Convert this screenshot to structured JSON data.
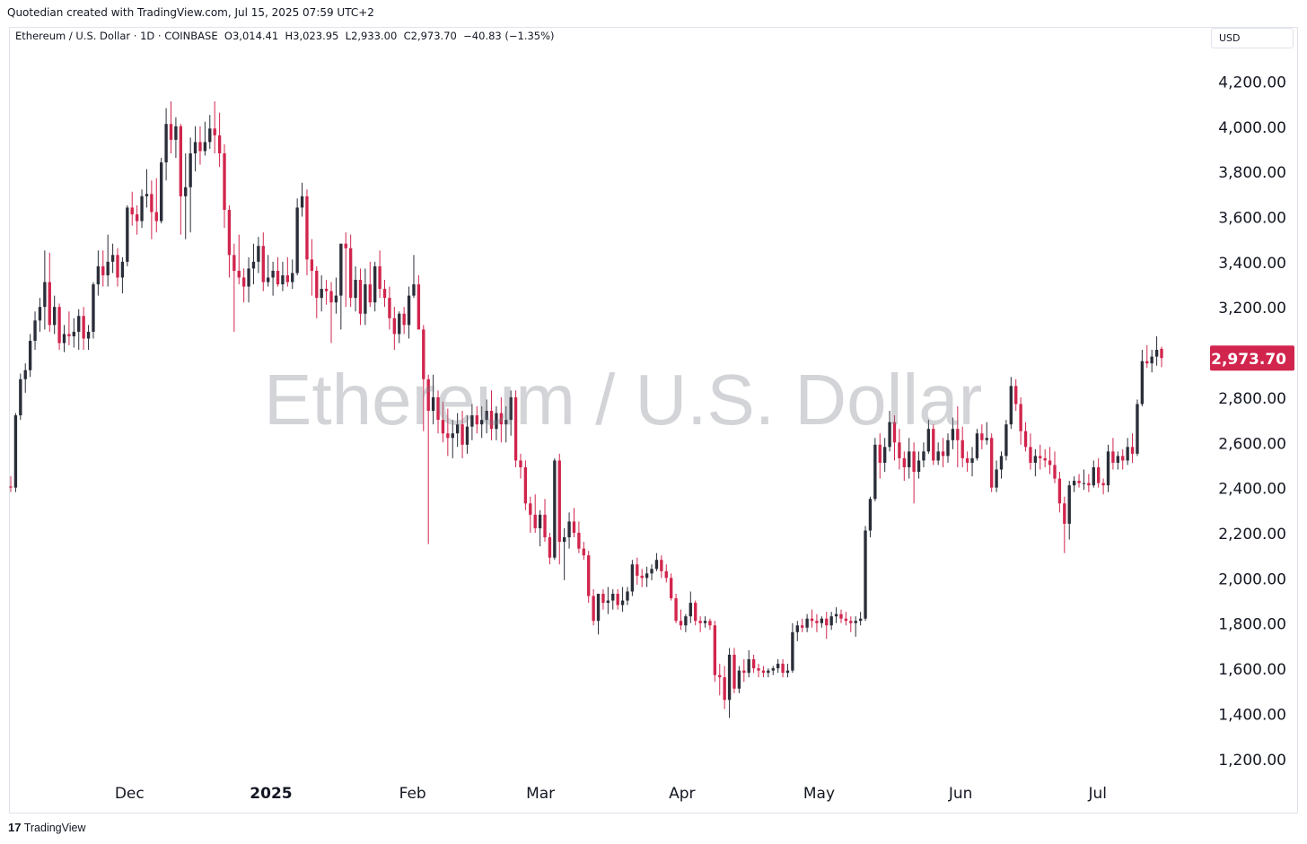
{
  "header": {
    "credit": "Quotedian created with TradingView.com, Jul 15, 2025 07:59 UTC+2"
  },
  "legend": {
    "symbol": "Ethereum / U.S. Dollar · 1D · COINBASE",
    "open": "O3,014.41",
    "high": "H3,023.95",
    "low": "L2,933.00",
    "close": "C2,973.70",
    "change": "−40.83 (−1.35%)"
  },
  "currency_label": "USD",
  "watermark": "Ethereum / U.S. Dollar",
  "footer": {
    "brand_logo": "17",
    "brand_name": "TradingView"
  },
  "colors": {
    "up": "#2a2e39",
    "down": "#d1254d",
    "price_tag": "#d1254d",
    "axis_text": "#131722"
  },
  "chart_data": {
    "type": "candlestick",
    "title": "Ethereum / U.S. Dollar",
    "interval": "1D",
    "exchange": "COINBASE",
    "ylim": [
      1100,
      4420
    ],
    "y_ticks": [
      4200,
      4000,
      3800,
      3600,
      3400,
      3200,
      3000,
      2800,
      2600,
      2400,
      2200,
      2000,
      1800,
      1600,
      1400,
      1200
    ],
    "y_tick_labels": [
      "4,200.00",
      "4,000.00",
      "3,800.00",
      "3,600.00",
      "3,400.00",
      "3,200.00",
      "3,000.00",
      "2,800.00",
      "2,600.00",
      "2,400.00",
      "2,200.00",
      "2,000.00",
      "1,800.00",
      "1,600.00",
      "1,400.00",
      "1,200.00"
    ],
    "x_labels": [
      {
        "label": "Dec",
        "date": "2024-12-01"
      },
      {
        "label": "2025",
        "date": "2025-01-01"
      },
      {
        "label": "Feb",
        "date": "2025-02-01"
      },
      {
        "label": "Mar",
        "date": "2025-03-01"
      },
      {
        "label": "Apr",
        "date": "2025-04-01"
      },
      {
        "label": "May",
        "date": "2025-05-01"
      },
      {
        "label": "Jun",
        "date": "2025-06-01"
      },
      {
        "label": "Jul",
        "date": "2025-07-01"
      }
    ],
    "first_date": "2024-11-05",
    "last_date": "2025-07-15",
    "last_price": 2973.7,
    "last_price_label": "2,973.70",
    "grid": false,
    "candles": [
      [
        2405,
        2450,
        2380,
        2400
      ],
      [
        2400,
        2730,
        2380,
        2720
      ],
      [
        2720,
        2905,
        2700,
        2880
      ],
      [
        2880,
        2950,
        2820,
        2920
      ],
      [
        2920,
        3080,
        2890,
        3050
      ],
      [
        3050,
        3180,
        3010,
        3140
      ],
      [
        3140,
        3240,
        3090,
        3200
      ],
      [
        3200,
        3450,
        3100,
        3310
      ],
      [
        3310,
        3440,
        3090,
        3120
      ],
      [
        3120,
        3250,
        3080,
        3200
      ],
      [
        3200,
        3215,
        3010,
        3040
      ],
      [
        3040,
        3120,
        3000,
        3080
      ],
      [
        3080,
        3180,
        3030,
        3070
      ],
      [
        3070,
        3150,
        3020,
        3090
      ],
      [
        3090,
        3190,
        3010,
        3160
      ],
      [
        3160,
        3200,
        3010,
        3060
      ],
      [
        3060,
        3120,
        3010,
        3090
      ],
      [
        3090,
        3310,
        3060,
        3300
      ],
      [
        3300,
        3450,
        3250,
        3380
      ],
      [
        3380,
        3450,
        3290,
        3340
      ],
      [
        3340,
        3520,
        3290,
        3400
      ],
      [
        3400,
        3480,
        3350,
        3430
      ],
      [
        3430,
        3460,
        3290,
        3330
      ],
      [
        3330,
        3420,
        3260,
        3400
      ],
      [
        3400,
        3650,
        3380,
        3640
      ],
      [
        3640,
        3710,
        3560,
        3610
      ],
      [
        3610,
        3650,
        3520,
        3580
      ],
      [
        3580,
        3720,
        3550,
        3690
      ],
      [
        3690,
        3810,
        3640,
        3700
      ],
      [
        3700,
        3760,
        3500,
        3620
      ],
      [
        3620,
        3770,
        3530,
        3580
      ],
      [
        3580,
        3860,
        3570,
        3840
      ],
      [
        3840,
        4080,
        3760,
        4010
      ],
      [
        4010,
        4110,
        3880,
        3940
      ],
      [
        3940,
        4040,
        3860,
        4000
      ],
      [
        4000,
        4010,
        3520,
        3690
      ],
      [
        3690,
        3880,
        3500,
        3730
      ],
      [
        3730,
        3950,
        3530,
        3880
      ],
      [
        3880,
        4000,
        3800,
        3930
      ],
      [
        3930,
        4000,
        3830,
        3890
      ],
      [
        3890,
        4020,
        3870,
        3930
      ],
      [
        3930,
        4050,
        3900,
        3990
      ],
      [
        3990,
        4110,
        3880,
        3960
      ],
      [
        3960,
        4060,
        3820,
        3880
      ],
      [
        3880,
        3920,
        3550,
        3630
      ],
      [
        3630,
        3650,
        3330,
        3430
      ],
      [
        3430,
        3480,
        3090,
        3360
      ],
      [
        3360,
        3520,
        3300,
        3330
      ],
      [
        3330,
        3370,
        3220,
        3290
      ],
      [
        3290,
        3420,
        3220,
        3370
      ],
      [
        3370,
        3480,
        3300,
        3400
      ],
      [
        3400,
        3510,
        3350,
        3470
      ],
      [
        3470,
        3530,
        3270,
        3310
      ],
      [
        3310,
        3430,
        3290,
        3330
      ],
      [
        3330,
        3400,
        3250,
        3360
      ],
      [
        3360,
        3420,
        3290,
        3300
      ],
      [
        3300,
        3400,
        3270,
        3340
      ],
      [
        3340,
        3420,
        3290,
        3310
      ],
      [
        3310,
        3410,
        3280,
        3350
      ],
      [
        3350,
        3680,
        3340,
        3640
      ],
      [
        3640,
        3750,
        3600,
        3690
      ],
      [
        3690,
        3720,
        3340,
        3410
      ],
      [
        3410,
        3500,
        3250,
        3360
      ],
      [
        3360,
        3380,
        3150,
        3240
      ],
      [
        3240,
        3340,
        3180,
        3280
      ],
      [
        3280,
        3320,
        3210,
        3270
      ],
      [
        3270,
        3310,
        3040,
        3220
      ],
      [
        3220,
        3330,
        3170,
        3250
      ],
      [
        3250,
        3480,
        3100,
        3480
      ],
      [
        3480,
        3530,
        3200,
        3460
      ],
      [
        3460,
        3520,
        3200,
        3240
      ],
      [
        3240,
        3380,
        3180,
        3320
      ],
      [
        3320,
        3370,
        3120,
        3170
      ],
      [
        3170,
        3370,
        3120,
        3300
      ],
      [
        3300,
        3400,
        3200,
        3220
      ],
      [
        3220,
        3400,
        3180,
        3380
      ],
      [
        3380,
        3450,
        3240,
        3280
      ],
      [
        3280,
        3320,
        3200,
        3240
      ],
      [
        3240,
        3290,
        3100,
        3150
      ],
      [
        3150,
        3200,
        3010,
        3080
      ],
      [
        3080,
        3180,
        3040,
        3170
      ],
      [
        3170,
        3200,
        3080,
        3120
      ],
      [
        3120,
        3290,
        3060,
        3250
      ],
      [
        3250,
        3430,
        3240,
        3300
      ],
      [
        3300,
        3340,
        3100,
        3100
      ],
      [
        3100,
        3120,
        2650,
        2880
      ],
      [
        2880,
        2900,
        2150,
        2740
      ],
      [
        2740,
        2900,
        2680,
        2800
      ],
      [
        2800,
        2830,
        2640,
        2700
      ],
      [
        2700,
        2780,
        2600,
        2640
      ],
      [
        2640,
        2750,
        2540,
        2620
      ],
      [
        2620,
        2700,
        2530,
        2640
      ],
      [
        2640,
        2730,
        2580,
        2680
      ],
      [
        2680,
        2740,
        2530,
        2590
      ],
      [
        2590,
        2720,
        2550,
        2670
      ],
      [
        2670,
        2770,
        2610,
        2720
      ],
      [
        2720,
        2760,
        2640,
        2680
      ],
      [
        2680,
        2760,
        2620,
        2700
      ],
      [
        2700,
        2790,
        2640,
        2740
      ],
      [
        2740,
        2830,
        2610,
        2660
      ],
      [
        2660,
        2760,
        2610,
        2730
      ],
      [
        2730,
        2800,
        2600,
        2680
      ],
      [
        2680,
        2760,
        2600,
        2700
      ],
      [
        2700,
        2830,
        2630,
        2800
      ],
      [
        2800,
        2830,
        2490,
        2520
      ],
      [
        2520,
        2550,
        2440,
        2490
      ],
      [
        2490,
        2520,
        2300,
        2330
      ],
      [
        2330,
        2360,
        2200,
        2280
      ],
      [
        2280,
        2370,
        2200,
        2220
      ],
      [
        2220,
        2300,
        2140,
        2280
      ],
      [
        2280,
        2350,
        2160,
        2180
      ],
      [
        2180,
        2200,
        2060,
        2090
      ],
      [
        2090,
        2530,
        2080,
        2520
      ],
      [
        2520,
        2550,
        2060,
        2160
      ],
      [
        2160,
        2220,
        1990,
        2180
      ],
      [
        2180,
        2290,
        2130,
        2250
      ],
      [
        2250,
        2310,
        2180,
        2200
      ],
      [
        2200,
        2250,
        2110,
        2130
      ],
      [
        2130,
        2160,
        2080,
        2100
      ],
      [
        2100,
        2120,
        1890,
        1920
      ],
      [
        1920,
        1950,
        1790,
        1810
      ],
      [
        1810,
        1920,
        1750,
        1930
      ],
      [
        1930,
        1950,
        1860,
        1890
      ],
      [
        1890,
        1960,
        1840,
        1900
      ],
      [
        1900,
        1950,
        1860,
        1930
      ],
      [
        1930,
        1950,
        1860,
        1880
      ],
      [
        1880,
        1960,
        1850,
        1900
      ],
      [
        1900,
        1960,
        1880,
        1940
      ],
      [
        1940,
        2080,
        1920,
        2060
      ],
      [
        2060,
        2090,
        1970,
        2010
      ],
      [
        2010,
        2040,
        1960,
        2000
      ],
      [
        2000,
        2050,
        1960,
        2020
      ],
      [
        2020,
        2060,
        1990,
        2040
      ],
      [
        2040,
        2110,
        2030,
        2080
      ],
      [
        2080,
        2100,
        2000,
        2030
      ],
      [
        2030,
        2060,
        1980,
        2000
      ],
      [
        2000,
        2020,
        1900,
        1910
      ],
      [
        1910,
        1930,
        1800,
        1810
      ],
      [
        1810,
        1860,
        1770,
        1790
      ],
      [
        1790,
        1840,
        1760,
        1830
      ],
      [
        1830,
        1940,
        1800,
        1890
      ],
      [
        1890,
        1900,
        1790,
        1810
      ],
      [
        1810,
        1830,
        1760,
        1800
      ],
      [
        1800,
        1830,
        1780,
        1810
      ],
      [
        1810,
        1820,
        1770,
        1790
      ],
      [
        1790,
        1810,
        1540,
        1570
      ],
      [
        1570,
        1620,
        1480,
        1560
      ],
      [
        1560,
        1610,
        1420,
        1460
      ],
      [
        1460,
        1690,
        1380,
        1660
      ],
      [
        1660,
        1690,
        1490,
        1510
      ],
      [
        1510,
        1610,
        1490,
        1590
      ],
      [
        1590,
        1640,
        1540,
        1580
      ],
      [
        1580,
        1680,
        1560,
        1640
      ],
      [
        1640,
        1660,
        1580,
        1600
      ],
      [
        1600,
        1620,
        1560,
        1590
      ],
      [
        1590,
        1610,
        1560,
        1580
      ],
      [
        1580,
        1600,
        1560,
        1590
      ],
      [
        1590,
        1610,
        1570,
        1600
      ],
      [
        1600,
        1640,
        1580,
        1620
      ],
      [
        1620,
        1640,
        1560,
        1580
      ],
      [
        1580,
        1620,
        1560,
        1590
      ],
      [
        1590,
        1800,
        1580,
        1760
      ],
      [
        1760,
        1810,
        1720,
        1790
      ],
      [
        1790,
        1820,
        1760,
        1780
      ],
      [
        1780,
        1840,
        1760,
        1820
      ],
      [
        1820,
        1860,
        1780,
        1810
      ],
      [
        1810,
        1840,
        1760,
        1800
      ],
      [
        1800,
        1830,
        1780,
        1820
      ],
      [
        1820,
        1850,
        1730,
        1790
      ],
      [
        1790,
        1850,
        1770,
        1830
      ],
      [
        1830,
        1870,
        1800,
        1840
      ],
      [
        1840,
        1860,
        1800,
        1820
      ],
      [
        1820,
        1850,
        1790,
        1810
      ],
      [
        1810,
        1830,
        1760,
        1800
      ],
      [
        1800,
        1830,
        1740,
        1810
      ],
      [
        1810,
        1850,
        1790,
        1820
      ],
      [
        1820,
        2230,
        1810,
        2210
      ],
      [
        2210,
        2360,
        2180,
        2350
      ],
      [
        2350,
        2620,
        2340,
        2590
      ],
      [
        2590,
        2640,
        2440,
        2510
      ],
      [
        2510,
        2620,
        2470,
        2580
      ],
      [
        2580,
        2740,
        2560,
        2690
      ],
      [
        2690,
        2720,
        2520,
        2600
      ],
      [
        2600,
        2660,
        2480,
        2530
      ],
      [
        2530,
        2560,
        2430,
        2490
      ],
      [
        2490,
        2620,
        2440,
        2560
      ],
      [
        2560,
        2600,
        2330,
        2470
      ],
      [
        2470,
        2560,
        2440,
        2520
      ],
      [
        2520,
        2600,
        2490,
        2560
      ],
      [
        2560,
        2700,
        2550,
        2660
      ],
      [
        2660,
        2680,
        2500,
        2520
      ],
      [
        2520,
        2600,
        2500,
        2560
      ],
      [
        2560,
        2620,
        2490,
        2540
      ],
      [
        2540,
        2640,
        2510,
        2610
      ],
      [
        2610,
        2710,
        2570,
        2660
      ],
      [
        2660,
        2760,
        2490,
        2610
      ],
      [
        2610,
        2670,
        2490,
        2530
      ],
      [
        2530,
        2560,
        2470,
        2510
      ],
      [
        2510,
        2580,
        2450,
        2530
      ],
      [
        2530,
        2660,
        2520,
        2640
      ],
      [
        2640,
        2680,
        2570,
        2610
      ],
      [
        2610,
        2690,
        2590,
        2620
      ],
      [
        2620,
        2640,
        2380,
        2400
      ],
      [
        2400,
        2520,
        2380,
        2480
      ],
      [
        2480,
        2560,
        2440,
        2540
      ],
      [
        2540,
        2700,
        2520,
        2680
      ],
      [
        2680,
        2890,
        2660,
        2850
      ],
      [
        2850,
        2880,
        2740,
        2770
      ],
      [
        2770,
        2800,
        2590,
        2650
      ],
      [
        2650,
        2690,
        2560,
        2580
      ],
      [
        2580,
        2640,
        2480,
        2510
      ],
      [
        2510,
        2570,
        2450,
        2540
      ],
      [
        2540,
        2590,
        2480,
        2530
      ],
      [
        2530,
        2570,
        2490,
        2520
      ],
      [
        2520,
        2580,
        2460,
        2500
      ],
      [
        2500,
        2560,
        2420,
        2440
      ],
      [
        2440,
        2470,
        2290,
        2330
      ],
      [
        2330,
        2360,
        2110,
        2240
      ],
      [
        2240,
        2430,
        2170,
        2410
      ],
      [
        2410,
        2450,
        2380,
        2430
      ],
      [
        2430,
        2460,
        2400,
        2420
      ],
      [
        2420,
        2480,
        2390,
        2420
      ],
      [
        2420,
        2460,
        2380,
        2410
      ],
      [
        2410,
        2520,
        2400,
        2490
      ],
      [
        2490,
        2530,
        2400,
        2420
      ],
      [
        2420,
        2440,
        2370,
        2410
      ],
      [
        2410,
        2590,
        2380,
        2560
      ],
      [
        2560,
        2620,
        2480,
        2510
      ],
      [
        2510,
        2560,
        2480,
        2540
      ],
      [
        2540,
        2570,
        2480,
        2520
      ],
      [
        2520,
        2620,
        2500,
        2580
      ],
      [
        2580,
        2640,
        2510,
        2550
      ],
      [
        2550,
        2790,
        2540,
        2770
      ],
      [
        2770,
        3010,
        2760,
        2960
      ],
      [
        2960,
        3030,
        2930,
        2950
      ],
      [
        2950,
        3010,
        2910,
        2980
      ],
      [
        2980,
        3070,
        2940,
        3010
      ],
      [
        3014.41,
        3023.95,
        2933.0,
        2973.7
      ]
    ]
  }
}
